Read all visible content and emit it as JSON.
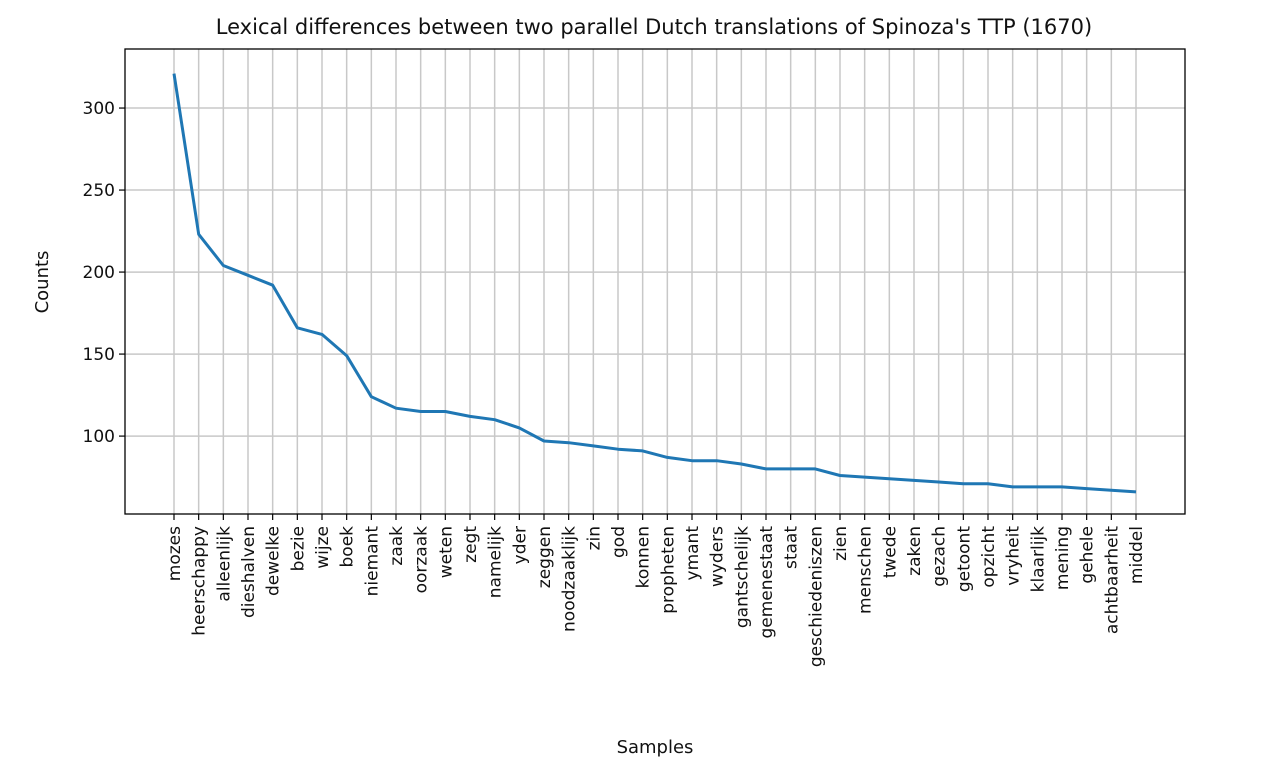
{
  "chart_data": {
    "type": "line",
    "title": "Lexical differences between two parallel Dutch translations of Spinoza's TTP (1670)",
    "xlabel": "Samples",
    "ylabel": "Counts",
    "ylim": [
      52.5,
      336
    ],
    "yticks": [
      100,
      150,
      200,
      250,
      300
    ],
    "grid": true,
    "color": "#1f77b4",
    "categories": [
      "mozes",
      "heerschappy",
      "alleenlijk",
      "dieshalven",
      "dewelke",
      "bezie",
      "wijze",
      "boek",
      "niemant",
      "zaak",
      "oorzaak",
      "weten",
      "zegt",
      "namelijk",
      "yder",
      "zeggen",
      "noodzaaklijk",
      "zin",
      "god",
      "konnen",
      "propheten",
      "ymant",
      "wyders",
      "gantschelijk",
      "gemenestaat",
      "staat",
      "geschiedeniszen",
      "zien",
      "menschen",
      "twede",
      "zaken",
      "gezach",
      "getoont",
      "opzicht",
      "vryheit",
      "klaarlijk",
      "mening",
      "gehele",
      "achtbaarheit",
      "middel"
    ],
    "values": [
      321,
      223,
      204,
      198,
      192,
      166,
      162,
      149,
      124,
      117,
      115,
      115,
      112,
      110,
      105,
      97,
      96,
      94,
      92,
      91,
      87,
      85,
      85,
      83,
      80,
      80,
      80,
      76,
      75,
      74,
      73,
      72,
      71,
      71,
      69,
      69,
      69,
      68,
      67,
      66
    ]
  }
}
